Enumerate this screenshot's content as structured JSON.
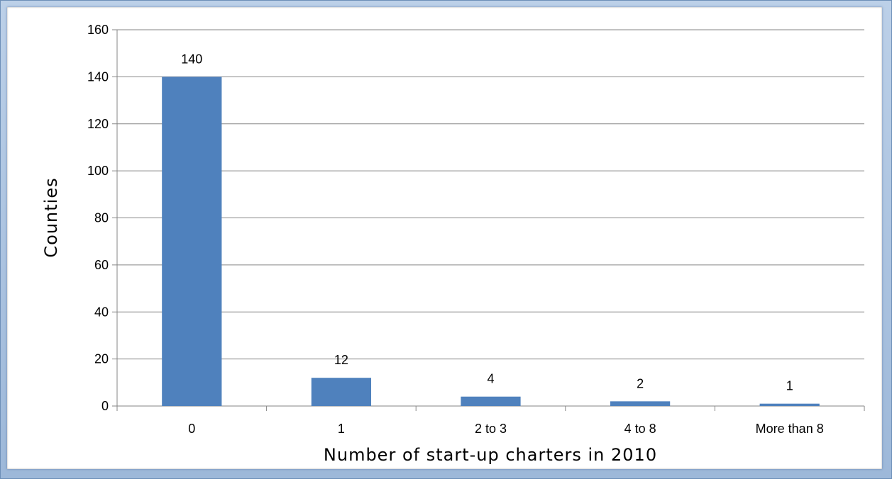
{
  "chart_data": {
    "type": "bar",
    "title": "",
    "xlabel": "Number of start-up charters in 2010",
    "ylabel": "Counties",
    "categories": [
      "0",
      "1",
      "2 to 3",
      "4 to 8",
      "More than 8"
    ],
    "values": [
      140,
      12,
      4,
      2,
      1
    ],
    "data_labels": [
      "140",
      "12",
      "4",
      "2",
      "1"
    ],
    "ylim": [
      0,
      160
    ],
    "yticks": [
      0,
      20,
      40,
      60,
      80,
      100,
      120,
      140,
      160
    ],
    "grid": true,
    "legend": "none",
    "bar_color": "#4f81bd"
  }
}
